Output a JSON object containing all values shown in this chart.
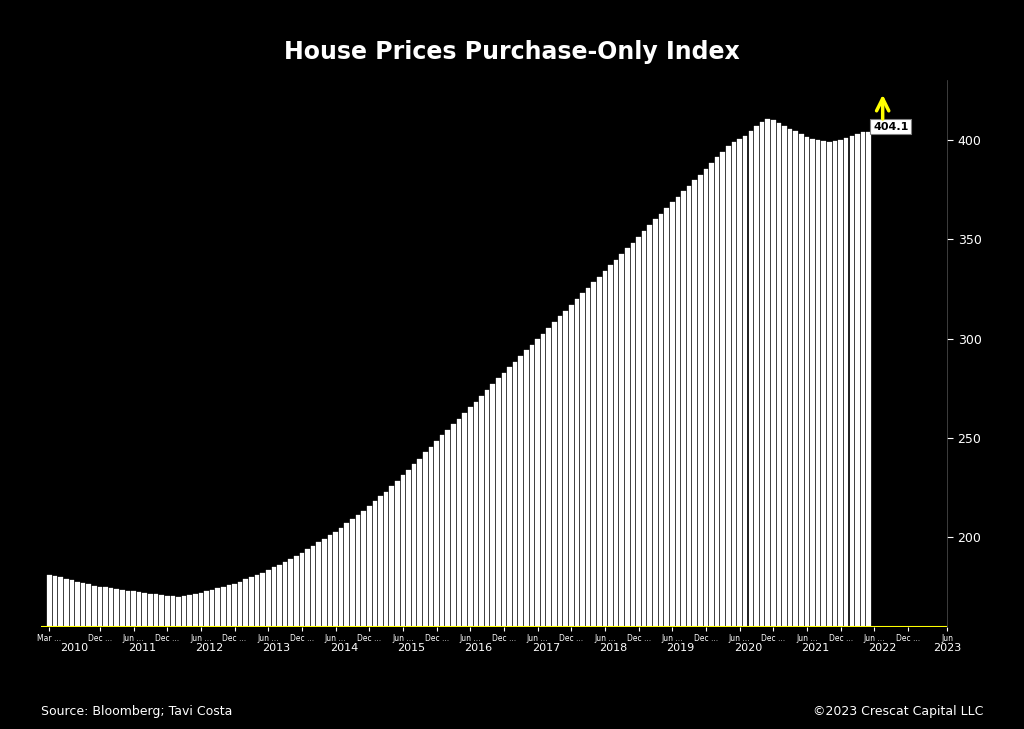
{
  "title": "House Prices Purchase-Only Index",
  "background_color": "#000000",
  "bar_color": "#ffffff",
  "title_color": "#ffffff",
  "tick_color": "#ffffff",
  "source_text": "Source: Bloomberg; Tavi Costa",
  "copyright_text": "©2023 Crescat Capital LLC",
  "last_value": 404.1,
  "arrow_color": "#ffff00",
  "xaxis_line_color": "#ffff00",
  "yticks": [
    200,
    250,
    300,
    350,
    400
  ],
  "ylim": [
    155,
    430
  ],
  "values": [
    181.1,
    180.5,
    180.0,
    179.2,
    178.5,
    177.8,
    177.0,
    176.5,
    175.8,
    175.2,
    174.9,
    174.5,
    174.2,
    173.8,
    173.2,
    172.9,
    172.5,
    172.0,
    171.8,
    171.5,
    171.2,
    170.8,
    170.5,
    170.3,
    170.5,
    170.9,
    171.4,
    172.3,
    173.0,
    173.5,
    174.5,
    175.1,
    176.0,
    176.8,
    177.5,
    178.9,
    180.0,
    181.0,
    182.2,
    183.5,
    185.0,
    186.2,
    187.5,
    189.1,
    190.5,
    192.4,
    194.2,
    195.8,
    197.5,
    199.2,
    201.0,
    203.0,
    205.0,
    207.2,
    209.2,
    211.5,
    213.5,
    216.0,
    218.2,
    220.8,
    223.0,
    225.9,
    228.5,
    231.3,
    234.0,
    236.9,
    239.5,
    242.8,
    245.5,
    248.5,
    251.5,
    254.2,
    257.0,
    259.8,
    262.5,
    265.5,
    268.2,
    271.2,
    274.0,
    277.0,
    280.0,
    282.8,
    285.5,
    288.5,
    291.2,
    294.2,
    297.0,
    299.8,
    302.5,
    305.5,
    308.2,
    311.2,
    314.0,
    317.0,
    320.0,
    322.8,
    325.5,
    328.5,
    331.2,
    334.2,
    337.0,
    339.8,
    342.5,
    345.5,
    348.2,
    351.2,
    354.0,
    357.0,
    360.0,
    362.8,
    365.5,
    368.5,
    371.2,
    374.2,
    377.0,
    379.8,
    382.5,
    385.5,
    388.2,
    391.2,
    394.0,
    396.8,
    399.0,
    400.5,
    402.0,
    404.5,
    407.0,
    409.2,
    410.5,
    409.8,
    408.5,
    407.0,
    405.5,
    404.2,
    402.8,
    401.5,
    400.5,
    399.8,
    399.2,
    399.0,
    399.5,
    400.0,
    401.0,
    402.1,
    403.0,
    404.1,
    404.1
  ],
  "x_tick_labels": [
    {
      "idx": 0,
      "label": "Mar ..."
    },
    {
      "idx": 9,
      "label": "Dec ..."
    },
    {
      "idx": 15,
      "label": "Jun ..."
    },
    {
      "idx": 21,
      "label": "Dec ..."
    },
    {
      "idx": 27,
      "label": "Jun ..."
    },
    {
      "idx": 33,
      "label": "Dec ..."
    },
    {
      "idx": 39,
      "label": "Jun ..."
    },
    {
      "idx": 45,
      "label": "Dec ..."
    },
    {
      "idx": 51,
      "label": "Jun ..."
    },
    {
      "idx": 57,
      "label": "Dec ..."
    },
    {
      "idx": 63,
      "label": "Jun ..."
    },
    {
      "idx": 69,
      "label": "Dec ..."
    },
    {
      "idx": 75,
      "label": "Jun ..."
    },
    {
      "idx": 81,
      "label": "Dec ..."
    },
    {
      "idx": 87,
      "label": "Jun ..."
    },
    {
      "idx": 93,
      "label": "Dec ..."
    },
    {
      "idx": 99,
      "label": "Jun ..."
    },
    {
      "idx": 105,
      "label": "Dec ..."
    },
    {
      "idx": 111,
      "label": "Jun ..."
    },
    {
      "idx": 117,
      "label": "Dec ..."
    },
    {
      "idx": 123,
      "label": "Jun ..."
    },
    {
      "idx": 129,
      "label": "Dec ..."
    },
    {
      "idx": 135,
      "label": "Jun ..."
    },
    {
      "idx": 141,
      "label": "Dec ..."
    },
    {
      "idx": 147,
      "label": "Jun ..."
    },
    {
      "idx": 153,
      "label": "Dec ..."
    },
    {
      "idx": 160,
      "label": "Jun"
    }
  ],
  "year_labels": [
    {
      "year": "2010",
      "idx": 4.5
    },
    {
      "year": "2011",
      "idx": 16.5
    },
    {
      "year": "2012",
      "idx": 28.5
    },
    {
      "year": "2013",
      "idx": 40.5
    },
    {
      "year": "2014",
      "idx": 52.5
    },
    {
      "year": "2015",
      "idx": 64.5
    },
    {
      "year": "2016",
      "idx": 76.5
    },
    {
      "year": "2017",
      "idx": 88.5
    },
    {
      "year": "2018",
      "idx": 100.5
    },
    {
      "year": "2019",
      "idx": 112.5
    },
    {
      "year": "2020",
      "idx": 124.5
    },
    {
      "year": "2021",
      "idx": 136.5
    },
    {
      "year": "2022",
      "idx": 148.5
    },
    {
      "year": "2023",
      "idx": 160
    }
  ]
}
